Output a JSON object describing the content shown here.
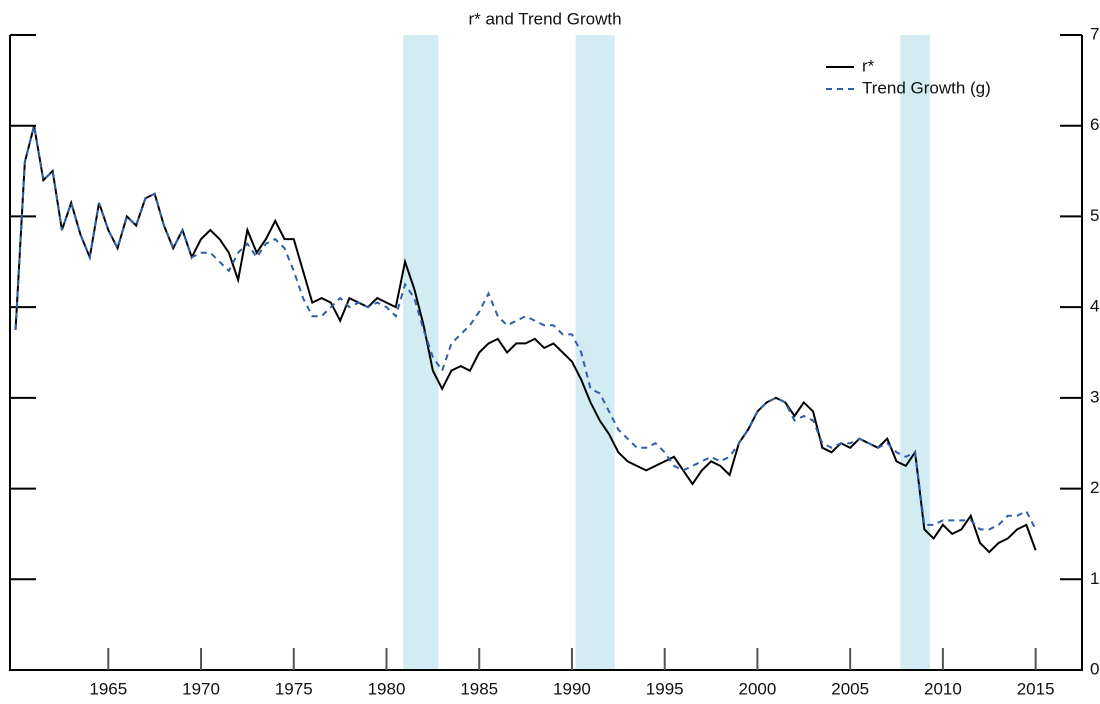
{
  "chart_data": {
    "type": "line",
    "title": "r* and Trend Growth",
    "x": [
      1960,
      1960.5,
      1961,
      1961.5,
      1962,
      1962.5,
      1963,
      1963.5,
      1964,
      1964.5,
      1965,
      1965.5,
      1966,
      1966.5,
      1967,
      1967.5,
      1968,
      1968.5,
      1969,
      1969.5,
      1970,
      1970.5,
      1971,
      1971.5,
      1972,
      1972.5,
      1973,
      1973.5,
      1974,
      1974.5,
      1975,
      1975.5,
      1976,
      1976.5,
      1977,
      1977.5,
      1978,
      1978.5,
      1979,
      1979.5,
      1980,
      1980.5,
      1981,
      1981.5,
      1982,
      1982.5,
      1983,
      1983.5,
      1984,
      1984.5,
      1985,
      1985.5,
      1986,
      1986.5,
      1987,
      1987.5,
      1988,
      1988.5,
      1989,
      1989.5,
      1990,
      1990.5,
      1991,
      1991.5,
      1992,
      1992.5,
      1993,
      1993.5,
      1994,
      1994.5,
      1995,
      1995.5,
      1996,
      1996.5,
      1997,
      1997.5,
      1998,
      1998.5,
      1999,
      1999.5,
      2000,
      2000.5,
      2001,
      2001.5,
      2002,
      2002.5,
      2003,
      2003.5,
      2004,
      2004.5,
      2005,
      2005.5,
      2006,
      2006.5,
      2007,
      2007.5,
      2008,
      2008.5,
      2009,
      2009.5,
      2010,
      2010.5,
      2011,
      2011.5,
      2012,
      2012.5,
      2013,
      2013.5,
      2014,
      2014.5,
      2015
    ],
    "series": [
      {
        "name": "r*",
        "color": "#000000",
        "dash": false,
        "values": [
          3.75,
          5.6,
          6.0,
          5.4,
          5.5,
          4.85,
          5.15,
          4.8,
          4.55,
          5.15,
          4.85,
          4.65,
          5.0,
          4.9,
          5.2,
          5.25,
          4.9,
          4.65,
          4.85,
          4.55,
          4.75,
          4.85,
          4.75,
          4.6,
          4.3,
          4.85,
          4.6,
          4.75,
          4.95,
          4.75,
          4.75,
          4.4,
          4.05,
          4.1,
          4.05,
          3.85,
          4.1,
          4.05,
          4.0,
          4.1,
          4.05,
          4.0,
          4.5,
          4.2,
          3.8,
          3.3,
          3.1,
          3.3,
          3.35,
          3.3,
          3.5,
          3.6,
          3.65,
          3.5,
          3.6,
          3.6,
          3.65,
          3.55,
          3.6,
          3.5,
          3.4,
          3.2,
          2.95,
          2.75,
          2.6,
          2.4,
          2.3,
          2.25,
          2.2,
          2.25,
          2.3,
          2.35,
          2.2,
          2.05,
          2.2,
          2.3,
          2.25,
          2.15,
          2.5,
          2.65,
          2.85,
          2.95,
          3.0,
          2.95,
          2.8,
          2.95,
          2.85,
          2.45,
          2.4,
          2.5,
          2.45,
          2.55,
          2.5,
          2.45,
          2.55,
          2.3,
          2.25,
          2.4,
          1.55,
          1.45,
          1.6,
          1.5,
          1.55,
          1.7,
          1.4,
          1.3,
          1.4,
          1.45,
          1.55,
          1.6,
          1.32
        ]
      },
      {
        "name": "Trend Growth (g)",
        "color": "#2f5fa8",
        "dash": true,
        "values": [
          3.75,
          5.6,
          6.0,
          5.4,
          5.5,
          4.85,
          5.15,
          4.8,
          4.55,
          5.15,
          4.85,
          4.65,
          5.0,
          4.9,
          5.2,
          5.25,
          4.9,
          4.65,
          4.85,
          4.55,
          4.6,
          4.6,
          4.5,
          4.4,
          4.6,
          4.7,
          4.55,
          4.7,
          4.75,
          4.65,
          4.4,
          4.1,
          3.9,
          3.9,
          4.0,
          4.1,
          4.0,
          4.05,
          4.0,
          4.05,
          4.0,
          3.9,
          4.25,
          4.1,
          3.75,
          3.45,
          3.3,
          3.6,
          3.7,
          3.8,
          3.95,
          4.15,
          3.9,
          3.8,
          3.85,
          3.9,
          3.85,
          3.8,
          3.8,
          3.7,
          3.7,
          3.5,
          3.1,
          3.05,
          2.85,
          2.65,
          2.55,
          2.45,
          2.45,
          2.5,
          2.4,
          2.25,
          2.2,
          2.25,
          2.3,
          2.35,
          2.3,
          2.35,
          2.5,
          2.65,
          2.85,
          2.95,
          3.0,
          2.95,
          2.75,
          2.8,
          2.75,
          2.5,
          2.45,
          2.5,
          2.5,
          2.55,
          2.5,
          2.45,
          2.5,
          2.4,
          2.35,
          2.4,
          1.6,
          1.6,
          1.65,
          1.65,
          1.65,
          1.65,
          1.55,
          1.55,
          1.6,
          1.7,
          1.7,
          1.75,
          1.55
        ]
      }
    ],
    "shaded_ranges": [
      [
        1980.9,
        1982.8
      ],
      [
        1990.2,
        1992.3
      ],
      [
        2007.7,
        2009.3
      ]
    ],
    "shade_color": "#d3ebf2",
    "xlim": [
      1959.7,
      2017.5
    ],
    "xticks": [
      1965,
      1970,
      1975,
      1980,
      1985,
      1990,
      1995,
      2000,
      2005,
      2010,
      2015
    ],
    "ylim": [
      0,
      7
    ],
    "yticks": [
      0,
      1,
      2,
      3,
      4,
      5,
      6,
      7
    ],
    "legend": "upper right",
    "grid": false
  }
}
